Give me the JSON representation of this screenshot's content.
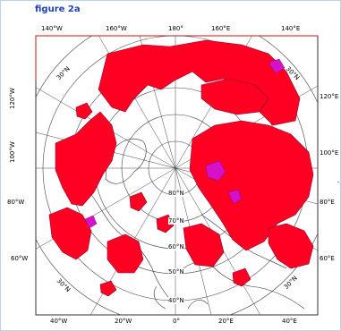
{
  "figure": {
    "title": "figure 2a"
  },
  "map": {
    "projection": "polar stereographic (north pole)",
    "colors": {
      "high_fill": "#ff0022",
      "high_outline": "#8b0030",
      "peak_fill": "#d612c8",
      "outline_grid": "#444444",
      "border": "#c01818"
    },
    "top_labels": [
      "140°W",
      "160°W",
      "180°",
      "160°E",
      "140°E"
    ],
    "bottom_labels": [
      "40°W",
      "20°W",
      "0°",
      "20°E",
      "40°E"
    ],
    "left_labels": [
      "120°W",
      "100°W",
      "80°W",
      "60°W"
    ],
    "right_labels": [
      "120°E",
      "100°E",
      "80°E",
      "60°E"
    ],
    "lat_labels": [
      "80°N",
      "70°N",
      "60°N",
      "50°N",
      "40°N"
    ],
    "diag_labels": [
      "30°N",
      "30°N",
      "30°N",
      "30°N"
    ],
    "extra_mark": "-"
  }
}
